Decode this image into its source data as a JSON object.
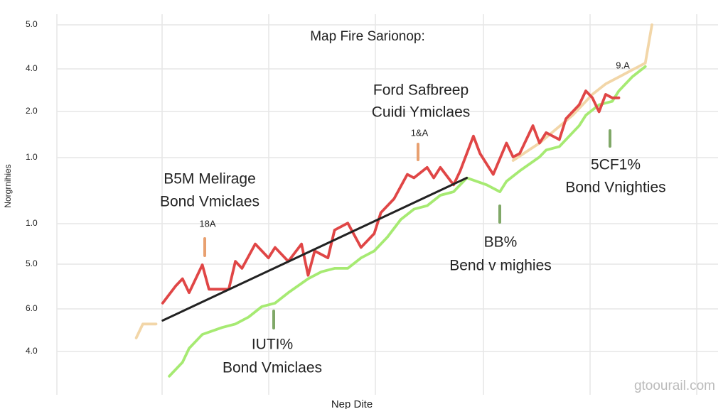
{
  "chart_data": {
    "type": "line",
    "title": "Map Fire Sarionop:",
    "y_axis_label": "Norgrnihies",
    "x_axis_label": "Nep Dite",
    "watermark": "gtoourail.com",
    "y_labels": [
      "5.0",
      "4.0",
      "2.0",
      "1.0",
      "1.0",
      "5.0",
      "6.0",
      "4.0"
    ],
    "xlim": [
      0,
      100
    ],
    "ylim": [
      -10,
      100
    ],
    "series": [
      {
        "color": "#f2d6a8",
        "x": [
          12,
          13,
          15,
          40,
          69,
          73,
          78,
          81,
          83,
          85,
          87,
          89,
          90
        ],
        "values": [
          9,
          13,
          13,
          null,
          60,
          65,
          73,
          79,
          82,
          84,
          86,
          88,
          99
        ]
      },
      {
        "color": "#a6ea72",
        "x": [
          17,
          19,
          20,
          22,
          25,
          27,
          29,
          31,
          33,
          35,
          38,
          40,
          42,
          44,
          46,
          48,
          50,
          52,
          54,
          56,
          58,
          60,
          62,
          65,
          67,
          68,
          70,
          73,
          74,
          76,
          77,
          79,
          80,
          82,
          84,
          85,
          87,
          89
        ],
        "values": [
          -2,
          2,
          6,
          10,
          12,
          13,
          15,
          18,
          19,
          22,
          26,
          28,
          29,
          29,
          32,
          34,
          38,
          43,
          46,
          47,
          50,
          51,
          55,
          53,
          51,
          54,
          57,
          61,
          63,
          64,
          66,
          70,
          73,
          76,
          77,
          80,
          84,
          87
        ]
      },
      {
        "color": "#e04646",
        "x": [
          16,
          18,
          19,
          20,
          22,
          23,
          26,
          27,
          28,
          30,
          32,
          33,
          35,
          37,
          38,
          39,
          41,
          42,
          44,
          46,
          48,
          49,
          51,
          53,
          54,
          56,
          57,
          58,
          60,
          61,
          63,
          64,
          66,
          68,
          69,
          70,
          72,
          73,
          74,
          76,
          77,
          79,
          80,
          81,
          82,
          83,
          84,
          85
        ],
        "values": [
          19,
          24,
          26,
          22,
          30,
          23,
          23,
          31,
          29,
          36,
          32,
          35,
          31,
          36,
          27,
          34,
          32,
          40,
          42,
          35,
          39,
          45,
          49,
          56,
          55,
          58,
          55,
          58,
          53,
          57,
          67,
          62,
          56,
          65,
          61,
          62,
          70,
          65,
          68,
          66,
          72,
          76,
          80,
          78,
          74,
          79,
          78,
          78
        ]
      },
      {
        "color": "#222222",
        "x": [
          16,
          62
        ],
        "values": [
          14,
          55
        ]
      }
    ],
    "annotations": [
      {
        "lines": [
          "Ford Safbreep",
          "Cuidi Ymiclaes"
        ]
      },
      {
        "lines": [
          "1&A"
        ]
      },
      {
        "lines": [
          "B5M Melirage",
          "Bond Vmiclaes"
        ]
      },
      {
        "lines": [
          "18A"
        ]
      },
      {
        "lines": [
          "BB%",
          "Bend v mighies"
        ]
      },
      {
        "lines": [
          "5CF1%",
          "Bond Vnighties"
        ]
      },
      {
        "lines": [
          "IUTI%",
          "Bond Vmiclaes"
        ]
      },
      {
        "lines": [
          "9.A"
        ]
      }
    ]
  }
}
